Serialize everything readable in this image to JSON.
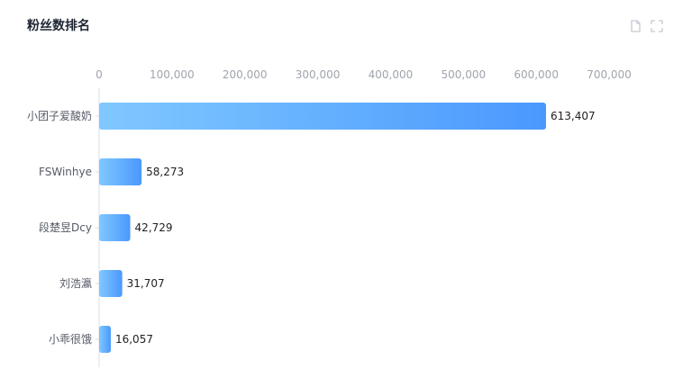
{
  "header": {
    "title": "粉丝数排名"
  },
  "toolbar": {
    "icons": [
      "copy-icon",
      "fullscreen-icon"
    ]
  },
  "colors": {
    "bar_start": "#80c8ff",
    "bar_end": "#4a98fe",
    "axis": "#d9dde3"
  },
  "chart_data": {
    "type": "bar",
    "orientation": "horizontal",
    "categories": [
      "小团子爱酸奶",
      "FSWinhye",
      "段楚昱Dcy",
      "刘浩瀛",
      "小乖很饿"
    ],
    "values": [
      613407,
      58273,
      42729,
      31707,
      16057
    ],
    "value_labels": [
      "613,407",
      "58,273",
      "42,729",
      "31,707",
      "16,057"
    ],
    "xlim": [
      0,
      700000
    ],
    "xticks": [
      0,
      100000,
      200000,
      300000,
      400000,
      500000,
      600000,
      700000
    ],
    "xtick_labels": [
      "0",
      "100,000",
      "200,000",
      "300,000",
      "400,000",
      "500,000",
      "600,000",
      "700,000"
    ],
    "title": "粉丝数排名",
    "grid": false,
    "legend": "none"
  }
}
